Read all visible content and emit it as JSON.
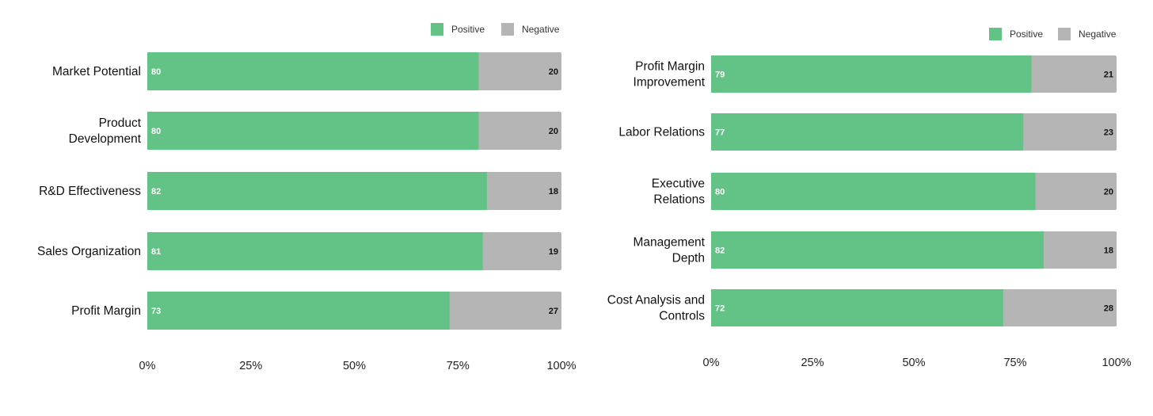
{
  "chart_data": [
    {
      "type": "bar",
      "orientation": "horizontal",
      "stacked": "percent",
      "categories": [
        "Market Potential",
        "Product Development",
        "R&D Effectiveness",
        "Sales Organization",
        "Profit Margin"
      ],
      "series": [
        {
          "name": "Positive",
          "color": "#63c387",
          "values": [
            80,
            80,
            82,
            81,
            73
          ]
        },
        {
          "name": "Negative",
          "color": "#b5b5b5",
          "values": [
            20,
            20,
            18,
            19,
            27
          ]
        }
      ],
      "x_ticks": [
        "0%",
        "25%",
        "50%",
        "75%",
        "100%"
      ],
      "xlim": [
        0,
        100
      ],
      "legend_position": "top-right",
      "grid": false
    },
    {
      "type": "bar",
      "orientation": "horizontal",
      "stacked": "percent",
      "categories": [
        "Profit Margin Improvement",
        "Labor Relations",
        "Executive Relations",
        "Management Depth",
        "Cost Analysis and Controls"
      ],
      "series": [
        {
          "name": "Positive",
          "color": "#63c387",
          "values": [
            79,
            77,
            80,
            82,
            72
          ]
        },
        {
          "name": "Negative",
          "color": "#b5b5b5",
          "values": [
            21,
            23,
            20,
            18,
            28
          ]
        }
      ],
      "x_ticks": [
        "0%",
        "25%",
        "50%",
        "75%",
        "100%"
      ],
      "xlim": [
        0,
        100
      ],
      "legend_position": "top-right",
      "grid": false
    }
  ]
}
